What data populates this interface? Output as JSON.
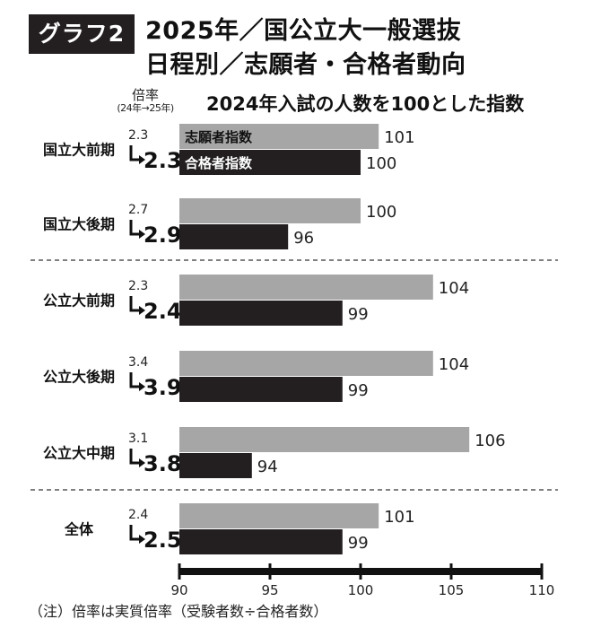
{
  "header": {
    "tag": "グラフ2",
    "title_line1": "2025年／国公立大一般選抜",
    "title_line2": "日程別／志願者・合格者動向"
  },
  "ratio_header": {
    "label": "倍率",
    "sub": "(24年→25年)"
  },
  "footnote": "（注）倍率は実質倍率（受験者数÷合格者数）",
  "colors": {
    "applicants": "#a6a6a6",
    "passers": "#231f20",
    "text": "#111111",
    "dashed": "#333333"
  },
  "chart_data": {
    "type": "bar",
    "orientation": "horizontal",
    "title": "2024年入試の人数を100とした指数",
    "categories": [
      "国立大前期",
      "国立大後期",
      "公立大前期",
      "公立大後期",
      "公立大中期",
      "全体"
    ],
    "series": [
      {
        "name": "志願者指数",
        "values": [
          101,
          100,
          104,
          104,
          106,
          101
        ]
      },
      {
        "name": "合格者指数",
        "values": [
          100,
          96,
          99,
          99,
          94,
          99
        ]
      }
    ],
    "ratio_2024": [
      "2.3",
      "2.7",
      "2.3",
      "3.4",
      "3.1",
      "2.4"
    ],
    "ratio_2025": [
      "2.3",
      "2.9",
      "2.4",
      "3.9",
      "3.8",
      "2.5"
    ],
    "xlim": [
      90,
      110
    ],
    "xticks": [
      90,
      95,
      100,
      105,
      110
    ],
    "legend": "inside-first-bars",
    "grid": false
  }
}
